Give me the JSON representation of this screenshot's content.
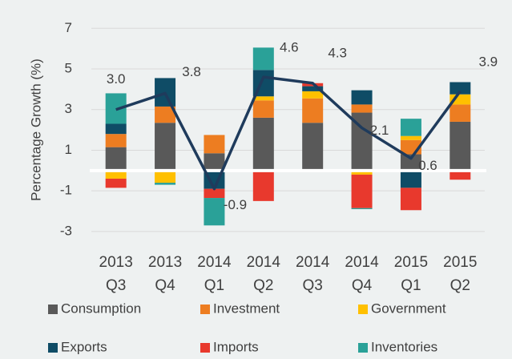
{
  "chart_data": {
    "type": "stacked_bar_line",
    "y_label": "Percentage Growth (%)",
    "categories": [
      [
        "2013",
        "Q3"
      ],
      [
        "2013",
        "Q4"
      ],
      [
        "2014",
        "Q1"
      ],
      [
        "2014",
        "Q2"
      ],
      [
        "2014",
        "Q3"
      ],
      [
        "2014",
        "Q4"
      ],
      [
        "2015",
        "Q1"
      ],
      [
        "2015",
        "Q2"
      ]
    ],
    "series": [
      {
        "name": "Consumption",
        "color": "#595959",
        "values": [
          1.15,
          2.35,
          0.85,
          2.6,
          2.35,
          2.85,
          0.8,
          2.4
        ]
      },
      {
        "name": "Investment",
        "color": "#ed7d21",
        "values": [
          0.65,
          0.8,
          0.9,
          0.85,
          1.2,
          0.4,
          0.7,
          0.85
        ]
      },
      {
        "name": "Government",
        "color": "#ffc000",
        "values": [
          -0.4,
          -0.6,
          0,
          0.2,
          0.35,
          -0.2,
          0.2,
          0.5
        ]
      },
      {
        "name": "Exports",
        "color": "#0f4c66",
        "values": [
          0.5,
          1.4,
          -0.9,
          1.3,
          0.25,
          0.7,
          -0.85,
          0.6
        ]
      },
      {
        "name": "Imports",
        "color": "#e8392d",
        "values": [
          -0.45,
          0,
          -0.45,
          -1.5,
          0.15,
          -1.65,
          -1.1,
          -0.45
        ]
      },
      {
        "name": "Inventories",
        "color": "#2aa198",
        "values": [
          1.5,
          -0.1,
          -1.35,
          1.1,
          0,
          -0.05,
          0.85,
          0
        ]
      }
    ],
    "line": {
      "color": "#1f3b5c",
      "values": [
        3.0,
        3.8,
        -0.9,
        4.6,
        4.3,
        2.1,
        0.6,
        3.9
      ],
      "value_labels": [
        "3.0",
        "3.8",
        "-0.9",
        "4.6",
        "4.3",
        "2.1",
        "0.6",
        "3.9"
      ]
    },
    "ylim": [
      -3.95,
      7.8
    ],
    "yticks": [
      -3,
      -1,
      1,
      3,
      5,
      7
    ],
    "grid": true
  }
}
